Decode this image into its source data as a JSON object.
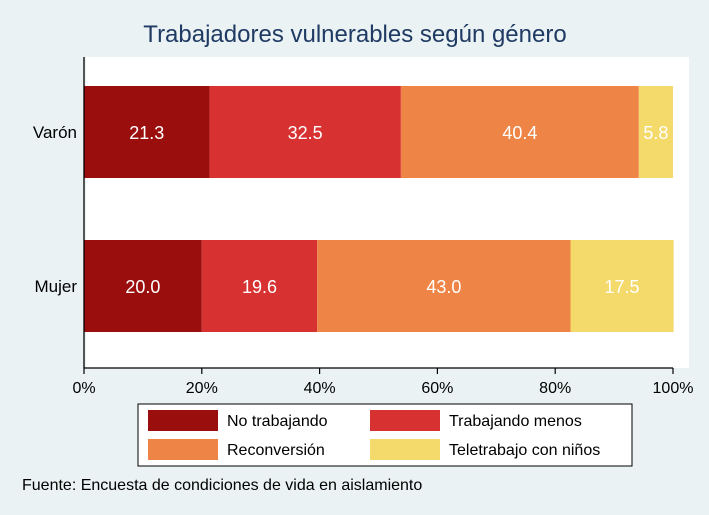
{
  "chart_data": {
    "type": "bar",
    "orientation": "horizontal",
    "stacked": "percent",
    "title": "Trabajadores vulnerables según género",
    "categories": [
      "Varón",
      "Mujer"
    ],
    "series": [
      {
        "name": "No trabajando",
        "values": [
          21.3,
          20.0
        ],
        "color": "#9b0e0e",
        "labels": [
          "21.3",
          "20.0"
        ]
      },
      {
        "name": "Trabajando menos",
        "values": [
          32.5,
          19.6
        ],
        "color": "#d73131",
        "labels": [
          "32.5",
          "19.6"
        ]
      },
      {
        "name": "Reconversión",
        "values": [
          40.4,
          43.0
        ],
        "color": "#ee8547",
        "labels": [
          "40.4",
          "43.0"
        ]
      },
      {
        "name": "Teletrabajo con niños",
        "values": [
          5.8,
          17.5
        ],
        "color": "#f4d96b",
        "labels": [
          "5.8",
          "17.5"
        ]
      }
    ],
    "xlim": [
      0,
      100
    ],
    "xticks": [
      0,
      20,
      40,
      60,
      80,
      100
    ],
    "xtick_labels": [
      "0%",
      "20%",
      "40%",
      "60%",
      "80%",
      "100%"
    ],
    "legend_position": "bottom",
    "source_note": "Fuente: Encuesta de condiciones de vida en aislamiento",
    "plot_background": "#ffffff",
    "page_background": "#eaf2f3",
    "title_color": "#1f3a63"
  }
}
